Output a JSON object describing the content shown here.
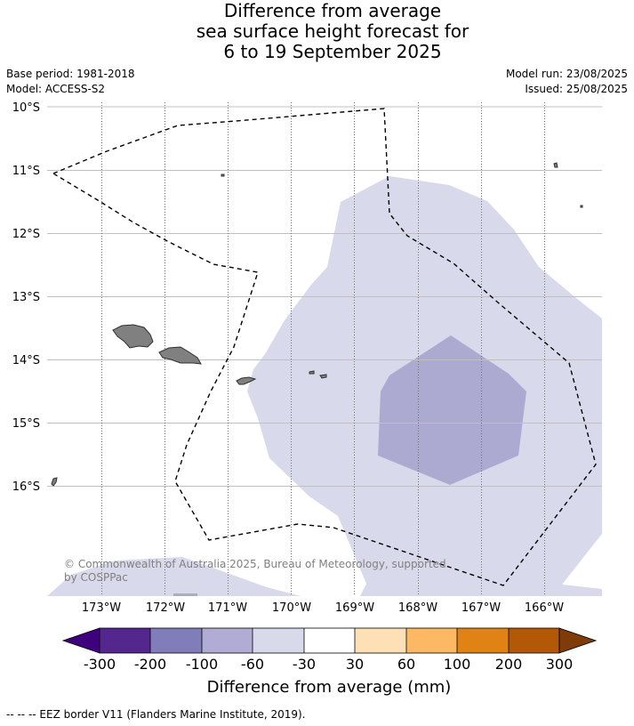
{
  "title": {
    "line1": "Difference from average",
    "line2": "sea surface height forecast for",
    "line3": "6 to 19 September 2025"
  },
  "meta": {
    "base_period": "Base period: 1981-2018",
    "model": "Model: ACCESS-S2",
    "model_run": "Model run: 23/08/2025",
    "issued": "Issued: 25/08/2025"
  },
  "map": {
    "lat_labels": [
      "10°S",
      "11°S",
      "12°S",
      "13°S",
      "14°S",
      "15°S",
      "16°S"
    ],
    "lon_labels": [
      "173°W",
      "172°W",
      "171°W",
      "170°W",
      "169°W",
      "168°W",
      "167°W",
      "166°W"
    ],
    "credit": "© Commonwealth of Australia 2025, Bureau of Meteorology, supported by COSPPac",
    "colors": {
      "land": "#808080",
      "grid_lat": "#c0c0c0",
      "grid_lon": "#606060",
      "eez": "#000000"
    }
  },
  "colorbar": {
    "tick_labels": [
      "-300",
      "-200",
      "-100",
      "-60",
      "-30",
      "30",
      "60",
      "100",
      "200",
      "300"
    ],
    "label": "Difference from average (mm)",
    "colors": [
      "#3f007d",
      "#54278f",
      "#807dba",
      "#bcbddc",
      "#dadaeb",
      "#ffffff",
      "#fee0b6",
      "#fdb863",
      "#e08214",
      "#b35806",
      "#7f3b08"
    ]
  },
  "footer": {
    "legend": "--  --  -- EEZ border V11 (Flanders Marine Institute, 2019)."
  }
}
